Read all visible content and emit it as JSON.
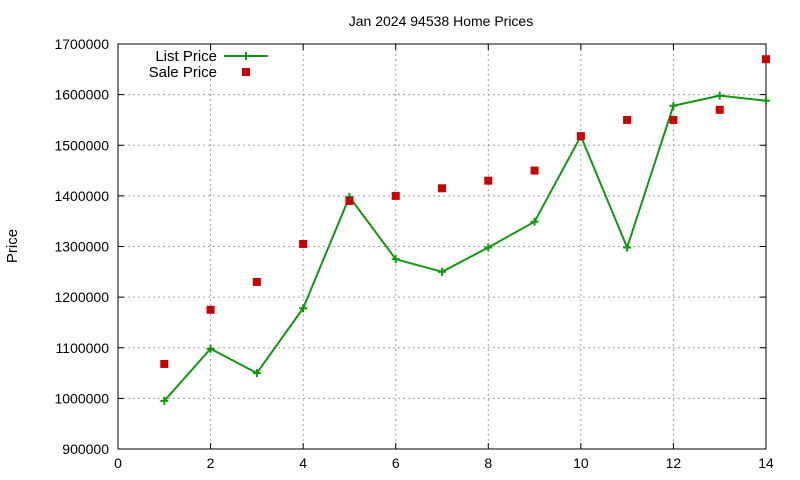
{
  "chart_data": {
    "type": "line",
    "title": "Jan 2024 94538 Home Prices",
    "xlabel": "",
    "ylabel": "Price",
    "xlim": [
      0,
      14
    ],
    "ylim": [
      900000,
      1700000
    ],
    "x_ticks": [
      0,
      2,
      4,
      6,
      8,
      10,
      12,
      14
    ],
    "y_ticks": [
      900000,
      1000000,
      1100000,
      1200000,
      1300000,
      1400000,
      1500000,
      1600000,
      1700000
    ],
    "grid": true,
    "legend_position": "top-left",
    "series": [
      {
        "name": "List Price",
        "style": "line-plus",
        "color": "#109810",
        "x": [
          1,
          2,
          3,
          4,
          5,
          6,
          7,
          8,
          9,
          10,
          11,
          12,
          13,
          14
        ],
        "y": [
          995000,
          1098000,
          1050000,
          1178000,
          1398000,
          1275000,
          1250000,
          1298000,
          1349000,
          1518000,
          1298000,
          1578000,
          1598000,
          1588000
        ]
      },
      {
        "name": "Sale Price",
        "style": "square-points",
        "color": "#cc0000",
        "x": [
          1,
          2,
          3,
          4,
          5,
          6,
          7,
          8,
          9,
          10,
          11,
          12,
          13,
          14
        ],
        "y": [
          1068000,
          1175000,
          1230000,
          1305000,
          1390000,
          1400000,
          1415000,
          1430000,
          1450000,
          1518000,
          1550000,
          1550000,
          1570000,
          1670000
        ]
      }
    ]
  }
}
